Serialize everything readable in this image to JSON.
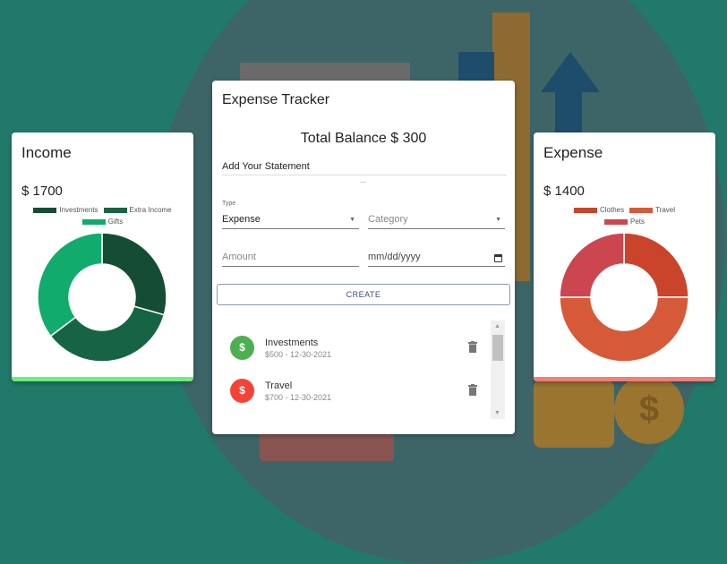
{
  "income": {
    "title": "Income",
    "amount": "$ 1700",
    "accent": "#69f07a",
    "chart_data": {
      "type": "pie",
      "categories": [
        "Investments",
        "Extra Income",
        "Gifts"
      ],
      "values": [
        500,
        600,
        600
      ],
      "colors": [
        "#144d33",
        "#166443",
        "#10ab6d"
      ],
      "legend": "top"
    }
  },
  "expense": {
    "title": "Expense",
    "amount": "$ 1400",
    "accent": "#f07f7a",
    "chart_data": {
      "type": "pie",
      "categories": [
        "Clothes",
        "Travel",
        "Pets"
      ],
      "values": [
        350,
        700,
        350
      ],
      "colors": [
        "#c9442b",
        "#d65a38",
        "#cc4650"
      ],
      "legend": "top"
    }
  },
  "tracker": {
    "title": "Expense Tracker",
    "balance": "Total Balance $ 300",
    "statement": "Add Your Statement",
    "dots": "...",
    "type_label": "Type",
    "type_value": "Expense",
    "category_placeholder": "Category",
    "amount_placeholder": "Amount",
    "date_placeholder": "mm/dd/yyyy",
    "create": "CREATE",
    "transactions": [
      {
        "title": "Investments",
        "subtitle": "$500 - 12-30-2021",
        "color": "#4caf50",
        "icon": "money-off-icon"
      },
      {
        "title": "Travel",
        "subtitle": "$700 - 12-30-2021",
        "color": "#f44336",
        "icon": "money-off-icon"
      }
    ]
  }
}
